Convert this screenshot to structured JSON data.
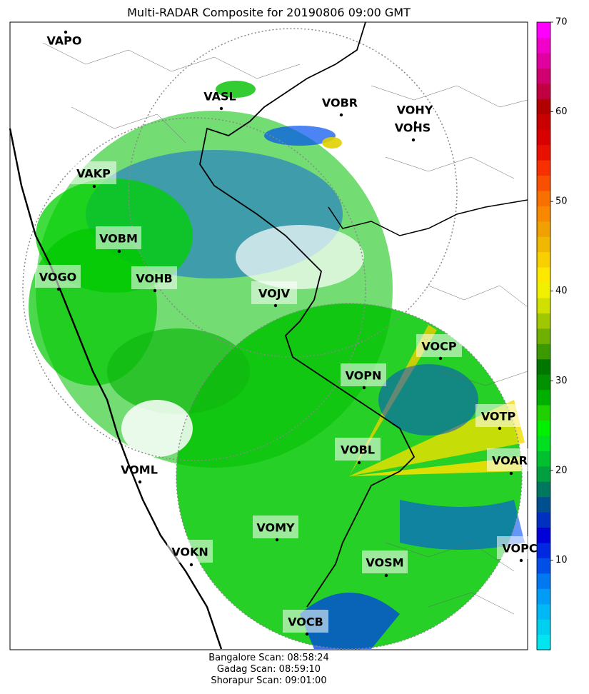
{
  "title": "Multi-RADAR Composite for 20190806 09:00 GMT",
  "footer": {
    "lines": [
      "Bangalore Scan: 08:58:24",
      "Gadag Scan: 08:59:10",
      "Shorapur Scan: 09:01:00"
    ]
  },
  "colorbar": {
    "min": 0,
    "max": 70,
    "ticks": [
      "10",
      "20",
      "30",
      "40",
      "50",
      "60",
      "70"
    ],
    "colors": [
      "#00e5ee",
      "#00d0f0",
      "#00b8f5",
      "#009cf5",
      "#0078f0",
      "#0050e8",
      "#0028e0",
      "#0000d8",
      "#0030c0",
      "#005090",
      "#007860",
      "#00a040",
      "#00c030",
      "#00e020",
      "#00f000",
      "#20d000",
      "#00b000",
      "#009000",
      "#007800",
      "#3a9a00",
      "#70b000",
      "#a0c800",
      "#d0e000",
      "#f0f000",
      "#ffe800",
      "#f8d000",
      "#f0b800",
      "#f0a000",
      "#f88800",
      "#f87000",
      "#f85000",
      "#f83000",
      "#e81000",
      "#d80000",
      "#c80000",
      "#b00000",
      "#c00040",
      "#d00070",
      "#e000a0",
      "#f000c8",
      "#ff00ff"
    ]
  },
  "stations": [
    {
      "code": "VAPO",
      "highlight": false
    },
    {
      "code": "VASL",
      "highlight": false
    },
    {
      "code": "VOBR",
      "highlight": false
    },
    {
      "code": "VOHY",
      "highlight": false
    },
    {
      "code": "VOHS",
      "highlight": false
    },
    {
      "code": "VAKP",
      "highlight": true
    },
    {
      "code": "VOBM",
      "highlight": true
    },
    {
      "code": "VOGO",
      "highlight": true
    },
    {
      "code": "VOHB",
      "highlight": true
    },
    {
      "code": "VOJV",
      "highlight": true
    },
    {
      "code": "VOCP",
      "highlight": true
    },
    {
      "code": "VOPN",
      "highlight": true
    },
    {
      "code": "VOTP",
      "highlight": true
    },
    {
      "code": "VOBL",
      "highlight": true
    },
    {
      "code": "VOAR",
      "highlight": true
    },
    {
      "code": "VOML",
      "highlight": false
    },
    {
      "code": "VOMY",
      "highlight": true
    },
    {
      "code": "VOKN",
      "highlight": true
    },
    {
      "code": "VOSM",
      "highlight": true
    },
    {
      "code": "VOPC",
      "highlight": true
    },
    {
      "code": "VOCB",
      "highlight": true
    }
  ]
}
